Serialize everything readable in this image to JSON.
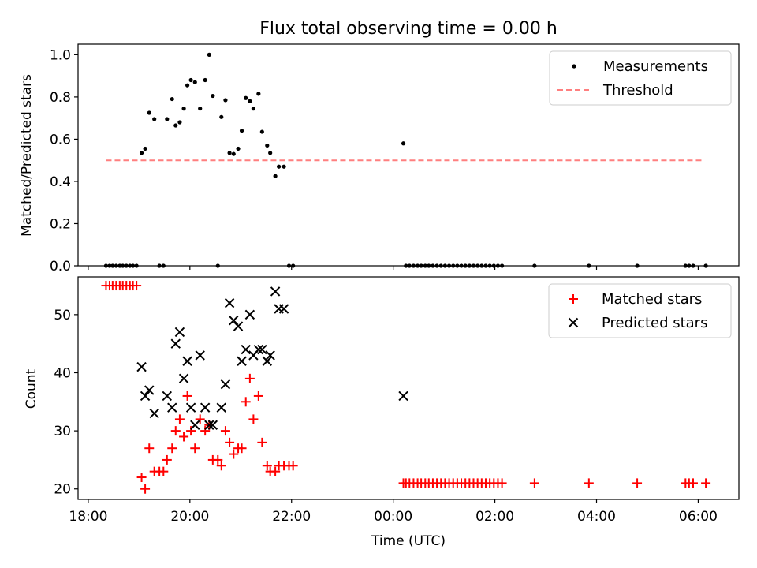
{
  "title": "Flux total observing time = 0.00 h",
  "chart_data": [
    {
      "type": "scatter",
      "ylabel": "Matched/Predicted stars",
      "xlim": [
        -0.2,
        12.8
      ],
      "ylim": [
        0,
        1.05
      ],
      "yticks": [
        0.0,
        0.2,
        0.4,
        0.6,
        0.8,
        1.0
      ],
      "ytick_labels": [
        "0.0",
        "0.2",
        "0.4",
        "0.6",
        "0.8",
        "1.0"
      ],
      "legend_position": "top-right",
      "legend": [
        "Measurements",
        "Threshold"
      ],
      "colors": {
        "measurements": "#000000",
        "threshold": "#ff7f7f"
      },
      "threshold": {
        "name": "Threshold",
        "value": 0.5,
        "x_range": [
          0.35,
          12.1
        ]
      },
      "series": [
        {
          "name": "Measurements",
          "points": [
            [
              0.35,
              0.0
            ],
            [
              0.42,
              0.0
            ],
            [
              0.48,
              0.0
            ],
            [
              0.55,
              0.0
            ],
            [
              0.62,
              0.0
            ],
            [
              0.68,
              0.0
            ],
            [
              0.75,
              0.0
            ],
            [
              0.82,
              0.0
            ],
            [
              0.88,
              0.0
            ],
            [
              0.95,
              0.0
            ],
            [
              1.05,
              0.535
            ],
            [
              1.12,
              0.555
            ],
            [
              1.2,
              0.725
            ],
            [
              1.3,
              0.695
            ],
            [
              1.4,
              0.0
            ],
            [
              1.48,
              0.0
            ],
            [
              1.55,
              0.695
            ],
            [
              1.65,
              0.79
            ],
            [
              1.72,
              0.665
            ],
            [
              1.8,
              0.68
            ],
            [
              1.88,
              0.745
            ],
            [
              1.95,
              0.855
            ],
            [
              2.02,
              0.88
            ],
            [
              2.1,
              0.87
            ],
            [
              2.2,
              0.745
            ],
            [
              2.3,
              0.88
            ],
            [
              2.38,
              1.0
            ],
            [
              2.45,
              0.805
            ],
            [
              2.55,
              0.0
            ],
            [
              2.62,
              0.705
            ],
            [
              2.7,
              0.785
            ],
            [
              2.78,
              0.535
            ],
            [
              2.86,
              0.53
            ],
            [
              2.95,
              0.555
            ],
            [
              3.02,
              0.64
            ],
            [
              3.1,
              0.795
            ],
            [
              3.18,
              0.78
            ],
            [
              3.25,
              0.745
            ],
            [
              3.35,
              0.815
            ],
            [
              3.42,
              0.635
            ],
            [
              3.52,
              0.57
            ],
            [
              3.58,
              0.535
            ],
            [
              3.68,
              0.425
            ],
            [
              3.75,
              0.47
            ],
            [
              3.85,
              0.47
            ],
            [
              3.95,
              0.0
            ],
            [
              4.03,
              0.0
            ],
            [
              6.2,
              0.58
            ],
            [
              6.25,
              0.0
            ],
            [
              6.32,
              0.0
            ],
            [
              6.4,
              0.0
            ],
            [
              6.48,
              0.0
            ],
            [
              6.55,
              0.0
            ],
            [
              6.63,
              0.0
            ],
            [
              6.7,
              0.0
            ],
            [
              6.78,
              0.0
            ],
            [
              6.86,
              0.0
            ],
            [
              6.94,
              0.0
            ],
            [
              7.02,
              0.0
            ],
            [
              7.1,
              0.0
            ],
            [
              7.18,
              0.0
            ],
            [
              7.26,
              0.0
            ],
            [
              7.34,
              0.0
            ],
            [
              7.42,
              0.0
            ],
            [
              7.5,
              0.0
            ],
            [
              7.58,
              0.0
            ],
            [
              7.66,
              0.0
            ],
            [
              7.74,
              0.0
            ],
            [
              7.82,
              0.0
            ],
            [
              7.9,
              0.0
            ],
            [
              7.98,
              0.0
            ],
            [
              8.06,
              0.0
            ],
            [
              8.14,
              0.0
            ],
            [
              8.78,
              0.0
            ],
            [
              9.85,
              0.0
            ],
            [
              10.8,
              0.0
            ],
            [
              11.75,
              0.0
            ],
            [
              11.82,
              0.0
            ],
            [
              11.9,
              0.0
            ],
            [
              12.15,
              0.0
            ]
          ]
        }
      ]
    },
    {
      "type": "scatter",
      "xlabel": "Time (UTC)",
      "ylabel": "Count",
      "xlim": [
        -0.2,
        12.8
      ],
      "ylim": [
        18.2,
        56.5
      ],
      "xticks": [
        0,
        2,
        4,
        6,
        8,
        10,
        12
      ],
      "xtick_labels": [
        "18:00",
        "20:00",
        "22:00",
        "00:00",
        "02:00",
        "04:00",
        "06:00"
      ],
      "yticks": [
        20,
        30,
        40,
        50
      ],
      "ytick_labels": [
        "20",
        "30",
        "40",
        "50"
      ],
      "legend_position": "top-right",
      "legend": [
        "Matched stars",
        "Predicted stars"
      ],
      "colors": {
        "matched": "#ff0000",
        "predicted": "#000000"
      },
      "series": [
        {
          "name": "Matched stars",
          "points": [
            [
              0.35,
              55
            ],
            [
              0.42,
              55
            ],
            [
              0.48,
              55
            ],
            [
              0.55,
              55
            ],
            [
              0.62,
              55
            ],
            [
              0.68,
              55
            ],
            [
              0.75,
              55
            ],
            [
              0.82,
              55
            ],
            [
              0.88,
              55
            ],
            [
              0.95,
              55
            ],
            [
              1.05,
              22
            ],
            [
              1.12,
              20
            ],
            [
              1.2,
              27
            ],
            [
              1.3,
              23
            ],
            [
              1.4,
              23
            ],
            [
              1.48,
              23
            ],
            [
              1.55,
              25
            ],
            [
              1.65,
              27
            ],
            [
              1.72,
              30
            ],
            [
              1.8,
              32
            ],
            [
              1.88,
              29
            ],
            [
              1.95,
              36
            ],
            [
              2.02,
              30
            ],
            [
              2.1,
              27
            ],
            [
              2.2,
              32
            ],
            [
              2.3,
              30
            ],
            [
              2.38,
              31
            ],
            [
              2.45,
              25
            ],
            [
              2.55,
              25
            ],
            [
              2.62,
              24
            ],
            [
              2.7,
              30
            ],
            [
              2.78,
              28
            ],
            [
              2.86,
              26
            ],
            [
              2.95,
              27
            ],
            [
              3.02,
              27
            ],
            [
              3.1,
              35
            ],
            [
              3.18,
              39
            ],
            [
              3.25,
              32
            ],
            [
              3.35,
              36
            ],
            [
              3.42,
              28
            ],
            [
              3.52,
              24
            ],
            [
              3.58,
              23
            ],
            [
              3.68,
              23
            ],
            [
              3.75,
              24
            ],
            [
              3.85,
              24
            ],
            [
              3.95,
              24
            ],
            [
              4.03,
              24
            ],
            [
              6.2,
              21
            ],
            [
              6.25,
              21
            ],
            [
              6.32,
              21
            ],
            [
              6.4,
              21
            ],
            [
              6.48,
              21
            ],
            [
              6.55,
              21
            ],
            [
              6.63,
              21
            ],
            [
              6.7,
              21
            ],
            [
              6.78,
              21
            ],
            [
              6.86,
              21
            ],
            [
              6.94,
              21
            ],
            [
              7.02,
              21
            ],
            [
              7.1,
              21
            ],
            [
              7.18,
              21
            ],
            [
              7.26,
              21
            ],
            [
              7.34,
              21
            ],
            [
              7.42,
              21
            ],
            [
              7.5,
              21
            ],
            [
              7.58,
              21
            ],
            [
              7.66,
              21
            ],
            [
              7.74,
              21
            ],
            [
              7.82,
              21
            ],
            [
              7.9,
              21
            ],
            [
              7.98,
              21
            ],
            [
              8.06,
              21
            ],
            [
              8.14,
              21
            ],
            [
              8.78,
              21
            ],
            [
              9.85,
              21
            ],
            [
              10.8,
              21
            ],
            [
              11.75,
              21
            ],
            [
              11.82,
              21
            ],
            [
              11.9,
              21
            ],
            [
              12.15,
              21
            ]
          ]
        },
        {
          "name": "Predicted stars",
          "points": [
            [
              1.05,
              41
            ],
            [
              1.12,
              36
            ],
            [
              1.2,
              37
            ],
            [
              1.3,
              33
            ],
            [
              1.55,
              36
            ],
            [
              1.65,
              34
            ],
            [
              1.72,
              45
            ],
            [
              1.8,
              47
            ],
            [
              1.88,
              39
            ],
            [
              1.95,
              42
            ],
            [
              2.02,
              34
            ],
            [
              2.1,
              31
            ],
            [
              2.2,
              43
            ],
            [
              2.3,
              34
            ],
            [
              2.38,
              31
            ],
            [
              2.45,
              31
            ],
            [
              2.62,
              34
            ],
            [
              2.7,
              38
            ],
            [
              2.78,
              52
            ],
            [
              2.86,
              49
            ],
            [
              2.95,
              48
            ],
            [
              3.02,
              42
            ],
            [
              3.1,
              44
            ],
            [
              3.18,
              50
            ],
            [
              3.25,
              43
            ],
            [
              3.35,
              44
            ],
            [
              3.42,
              44
            ],
            [
              3.52,
              42
            ],
            [
              3.58,
              43
            ],
            [
              3.68,
              54
            ],
            [
              3.75,
              51
            ],
            [
              3.85,
              51
            ],
            [
              6.2,
              36
            ]
          ]
        }
      ]
    }
  ]
}
